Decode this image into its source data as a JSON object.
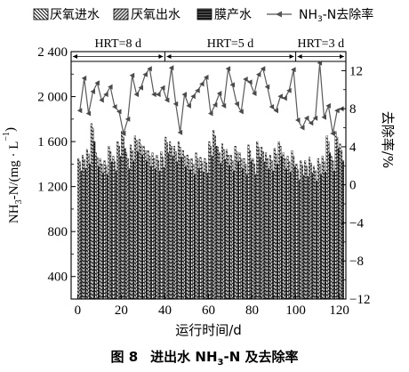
{
  "caption": {
    "number": "图 8",
    "text_pre": "进出水 NH",
    "text_sub": "3",
    "text_post": "-N 及去除率"
  },
  "chart_data": {
    "type": "bar+line",
    "title": "",
    "xlabel": "运行时间/d",
    "ylabel_left": {
      "pre": "NH",
      "sub": "3",
      "mid": "-N/(mg · L",
      "sup": "−1",
      "post": ")"
    },
    "ylabel_right": "去除率/%",
    "xlim": [
      -3,
      123
    ],
    "ylim_left": [
      200,
      2400
    ],
    "ylim_right": [
      -12,
      14
    ],
    "xticks": [
      0,
      20,
      40,
      60,
      80,
      100,
      120
    ],
    "yticks_left": [
      400,
      800,
      1200,
      1600,
      2000,
      2400
    ],
    "yticks_left_labels": [
      "400",
      "800",
      "1 200",
      "1 600",
      "2 000",
      "2 400"
    ],
    "yticks_right": [
      -12,
      -8,
      -4,
      0,
      4,
      8,
      12
    ],
    "yticks_right_labels": [
      "−12",
      "−8",
      "−4",
      "0",
      "4",
      "8",
      "12"
    ],
    "legend": {
      "placement": "top",
      "items": [
        {
          "label": "厌氧进水",
          "swatch": "hatch-back"
        },
        {
          "label": "厌氧出水",
          "swatch": "hatch-fwd"
        },
        {
          "label": "膜产水",
          "swatch": "hatch-horizontal"
        },
        {
          "pre": "NH",
          "sub": "3",
          "post": "-N去除率",
          "swatch": "line-triangle"
        }
      ]
    },
    "phases": [
      {
        "label": "HRT=8 d",
        "start": -3,
        "end": 40
      },
      {
        "label": "HRT=5 d",
        "start": 40,
        "end": 100
      },
      {
        "label": "HRT=3 d",
        "start": 100,
        "end": 123
      }
    ],
    "days": [
      1,
      3,
      5,
      7,
      9,
      11,
      13,
      15,
      17,
      19,
      21,
      23,
      25,
      27,
      29,
      31,
      33,
      35,
      37,
      39,
      41,
      43,
      45,
      47,
      49,
      51,
      53,
      55,
      57,
      59,
      61,
      63,
      65,
      67,
      69,
      71,
      73,
      75,
      77,
      79,
      81,
      83,
      85,
      87,
      89,
      91,
      93,
      95,
      97,
      99,
      101,
      103,
      105,
      107,
      109,
      111,
      113,
      115,
      117,
      119,
      121
    ],
    "series": [
      {
        "name": "厌氧进水",
        "kind": "bar",
        "values": [
          1450,
          1480,
          1530,
          1760,
          1500,
          1450,
          1430,
          1560,
          1470,
          1600,
          1690,
          1500,
          1570,
          1650,
          1620,
          1560,
          1520,
          1500,
          1480,
          1510,
          1640,
          1600,
          1560,
          1600,
          1520,
          1480,
          1450,
          1500,
          1460,
          1450,
          1600,
          1700,
          1550,
          1580,
          1530,
          1480,
          1560,
          1500,
          1450,
          1570,
          1450,
          1600,
          1550,
          1500,
          1480,
          1540,
          1600,
          1500,
          1470,
          1520,
          1400,
          1430,
          1430,
          1460,
          1380,
          1450,
          1470,
          1650,
          1470,
          1690,
          1580
        ]
      },
      {
        "name": "厌氧出水",
        "kind": "bar",
        "values": [
          1420,
          1440,
          1490,
          1720,
          1460,
          1400,
          1390,
          1510,
          1420,
          1560,
          1640,
          1450,
          1520,
          1610,
          1570,
          1520,
          1470,
          1450,
          1430,
          1460,
          1590,
          1560,
          1510,
          1550,
          1470,
          1440,
          1400,
          1450,
          1420,
          1410,
          1560,
          1650,
          1500,
          1530,
          1480,
          1430,
          1510,
          1450,
          1400,
          1520,
          1400,
          1550,
          1510,
          1450,
          1430,
          1490,
          1560,
          1450,
          1420,
          1470,
          1350,
          1390,
          1380,
          1410,
          1340,
          1400,
          1420,
          1600,
          1430,
          1640,
          1520
        ]
      },
      {
        "name": "膜产水",
        "kind": "bar",
        "values": [
          1340,
          1360,
          1400,
          1600,
          1380,
          1320,
          1310,
          1420,
          1340,
          1470,
          1540,
          1360,
          1430,
          1510,
          1480,
          1430,
          1380,
          1360,
          1340,
          1370,
          1500,
          1470,
          1420,
          1460,
          1380,
          1350,
          1310,
          1360,
          1330,
          1320,
          1470,
          1560,
          1410,
          1440,
          1390,
          1340,
          1420,
          1360,
          1310,
          1430,
          1310,
          1460,
          1420,
          1360,
          1340,
          1400,
          1470,
          1360,
          1330,
          1380,
          1260,
          1300,
          1290,
          1320,
          1250,
          1310,
          1330,
          1500,
          1340,
          1540,
          1430
        ]
      },
      {
        "name": "NH3-N去除率",
        "kind": "line",
        "axis": "right",
        "values": [
          7.8,
          11.2,
          7.5,
          9.8,
          10.7,
          8.9,
          9.5,
          10.3,
          8.2,
          7.7,
          5.4,
          6.9,
          11.5,
          9.5,
          10.2,
          11.6,
          12.2,
          9.5,
          9.5,
          10.2,
          8.9,
          12.3,
          8.5,
          5.5,
          9.5,
          8.3,
          9.3,
          9.9,
          10.6,
          11.3,
          7.5,
          8.4,
          9.6,
          8.3,
          12.2,
          10.5,
          8.5,
          7.7,
          11.1,
          10.8,
          9.6,
          11.6,
          12.2,
          10.3,
          8.2,
          7.8,
          9.3,
          9.1,
          9.9,
          12.1,
          6.8,
          6.0,
          7.0,
          6.5,
          7.0,
          12.8,
          7.1,
          8.3,
          5.4,
          7.8,
          8.0
        ]
      }
    ]
  }
}
